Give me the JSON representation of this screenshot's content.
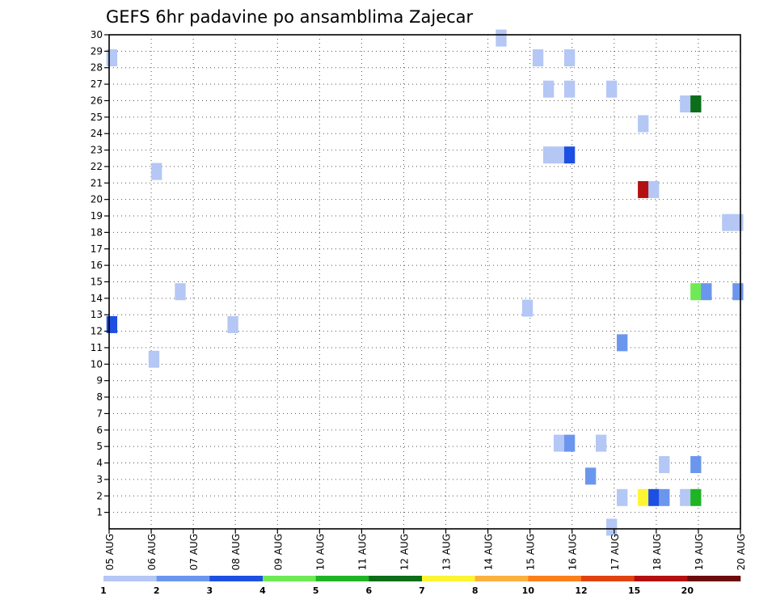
{
  "chart_data": {
    "type": "heatmap",
    "title": "GEFS 6hr padavine po ansamblima Zajecar",
    "xlabel": "",
    "ylabel": "",
    "x_tick_labels": [
      "05 AUG",
      "06 AUG",
      "07 AUG",
      "08 AUG",
      "09 AUG",
      "10 AUG",
      "11 AUG",
      "12 AUG",
      "13 AUG",
      "14 AUG",
      "15 AUG",
      "16 AUG",
      "17 AUG",
      "18 AUG",
      "19 AUG",
      "20 AUG"
    ],
    "y_tick_labels": [
      "1",
      "2",
      "3",
      "4",
      "5",
      "6",
      "7",
      "8",
      "9",
      "10",
      "11",
      "12",
      "13",
      "14",
      "15",
      "16",
      "17",
      "18",
      "19",
      "20",
      "21",
      "22",
      "23",
      "24",
      "25",
      "26",
      "27",
      "28",
      "29",
      "30"
    ],
    "xlim": [
      0,
      60
    ],
    "ylim": [
      0,
      30
    ],
    "x_unit_note": "x in 6-hour steps from 05 AUG 00Z (4 steps per day)",
    "grid": true,
    "colorbar": {
      "labels": [
        "1",
        "2",
        "3",
        "4",
        "5",
        "6",
        "7",
        "8",
        "10",
        "12",
        "15",
        "20"
      ],
      "colors": [
        "#b4c7f5",
        "#6b96ee",
        "#1c4fe2",
        "#6fea54",
        "#1eb424",
        "#0c6e18",
        "#fdf532",
        "#fcb13e",
        "#fb7f1b",
        "#e24211",
        "#b40f10",
        "#6e0a0e"
      ]
    },
    "cells": [
      {
        "x": 0.25,
        "y": 28.6,
        "value": 1.5
      },
      {
        "x": 0.25,
        "y": 12.4,
        "value": 3.5
      },
      {
        "x": 4.25,
        "y": 10.3,
        "value": 1.5
      },
      {
        "x": 4.5,
        "y": 21.7,
        "value": 1.5
      },
      {
        "x": 6.75,
        "y": 14.4,
        "value": 1.5
      },
      {
        "x": 11.75,
        "y": 12.4,
        "value": 1.5
      },
      {
        "x": 37.25,
        "y": 29.8,
        "value": 1.5
      },
      {
        "x": 39.75,
        "y": 13.4,
        "value": 1.5
      },
      {
        "x": 40.75,
        "y": 28.6,
        "value": 1.5
      },
      {
        "x": 41.75,
        "y": 26.7,
        "value": 1.5
      },
      {
        "x": 41.75,
        "y": 22.7,
        "value": 1.5
      },
      {
        "x": 42.75,
        "y": 22.7,
        "value": 1.5
      },
      {
        "x": 42.75,
        "y": 5.2,
        "value": 1.5
      },
      {
        "x": 43.75,
        "y": 28.6,
        "value": 1.5
      },
      {
        "x": 43.75,
        "y": 26.7,
        "value": 1.5
      },
      {
        "x": 43.75,
        "y": 22.7,
        "value": 3.5
      },
      {
        "x": 43.75,
        "y": 5.2,
        "value": 2.5
      },
      {
        "x": 45.75,
        "y": 3.2,
        "value": 2.5
      },
      {
        "x": 46.75,
        "y": 5.2,
        "value": 1.5
      },
      {
        "x": 47.75,
        "y": 26.7,
        "value": 1.5
      },
      {
        "x": 47.75,
        "y": 0.1,
        "value": 1.5
      },
      {
        "x": 48.75,
        "y": 11.3,
        "value": 2.5
      },
      {
        "x": 48.75,
        "y": 1.9,
        "value": 1.5
      },
      {
        "x": 50.75,
        "y": 24.6,
        "value": 1.5
      },
      {
        "x": 50.75,
        "y": 20.6,
        "value": 15.5
      },
      {
        "x": 50.75,
        "y": 1.9,
        "value": 7.5
      },
      {
        "x": 51.75,
        "y": 20.6,
        "value": 1.5
      },
      {
        "x": 51.75,
        "y": 1.9,
        "value": 3.5
      },
      {
        "x": 52.75,
        "y": 3.9,
        "value": 1.5
      },
      {
        "x": 52.75,
        "y": 1.9,
        "value": 2.5
      },
      {
        "x": 54.75,
        "y": 25.8,
        "value": 1.5
      },
      {
        "x": 54.75,
        "y": 1.9,
        "value": 1.5
      },
      {
        "x": 55.75,
        "y": 25.8,
        "value": 6.5
      },
      {
        "x": 55.75,
        "y": 14.4,
        "value": 4.5
      },
      {
        "x": 55.75,
        "y": 3.9,
        "value": 2.5
      },
      {
        "x": 55.75,
        "y": 1.9,
        "value": 5.5
      },
      {
        "x": 56.75,
        "y": 14.4,
        "value": 2.5
      },
      {
        "x": 58.75,
        "y": 18.6,
        "value": 1.5
      },
      {
        "x": 59.75,
        "y": 18.6,
        "value": 1.5
      },
      {
        "x": 59.75,
        "y": 14.4,
        "value": 2.5
      }
    ]
  }
}
